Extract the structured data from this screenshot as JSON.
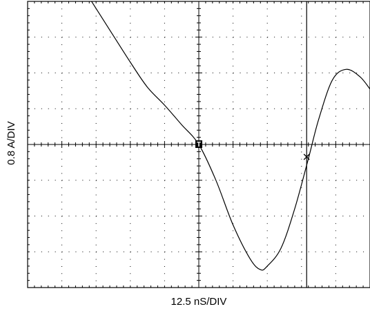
{
  "chart_data": {
    "type": "line",
    "xlabel": "12.5 nS/DIV",
    "ylabel": "0.8 A/DIV",
    "x_divisions": 10,
    "y_divisions": 8,
    "xlim": [
      -5,
      5
    ],
    "ylim": [
      -4,
      4
    ],
    "grid": true,
    "series": [
      {
        "x": [
          -3.2,
          -2.6,
          -2.0,
          -1.5,
          -1.0,
          -0.5,
          0.0,
          0.5,
          1.0,
          1.5,
          1.8,
          2.0,
          2.4,
          2.8,
          3.2,
          3.5,
          3.9,
          4.3,
          4.7,
          5.0
        ],
        "y": [
          4.1,
          3.2,
          2.3,
          1.6,
          1.1,
          0.55,
          0.0,
          -1.0,
          -2.25,
          -3.2,
          -3.5,
          -3.4,
          -2.9,
          -1.8,
          -0.4,
          0.7,
          1.8,
          2.1,
          1.9,
          1.55
        ]
      }
    ],
    "markers": [
      {
        "label": "T",
        "x": 0.0,
        "y": 0.0
      },
      {
        "label": "×",
        "x": 3.15,
        "y": -0.33
      }
    ],
    "cursor_x": 3.15,
    "colors": {
      "trace": "#000000",
      "grid": "#000000",
      "frame": "#000000"
    }
  }
}
